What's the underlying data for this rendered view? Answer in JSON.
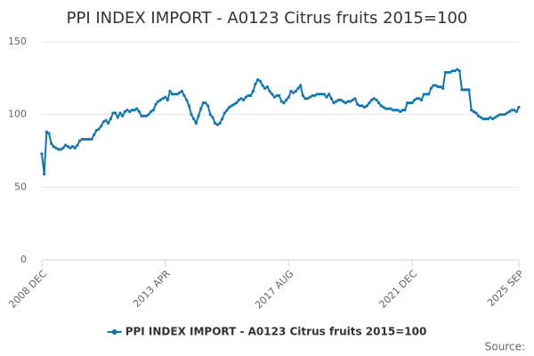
{
  "chart_data": {
    "type": "line",
    "title": "PPI INDEX IMPORT - A0123 Citrus fruits 2015=100",
    "credits": "Source:",
    "categories": [
      "2008 DEC",
      null,
      null,
      null,
      null,
      null,
      null,
      null,
      null,
      null,
      null,
      null,
      null,
      null,
      null,
      null,
      null,
      null,
      null,
      null,
      null,
      null,
      null,
      null,
      null,
      null,
      null,
      null,
      null,
      null,
      null,
      null,
      null,
      null,
      null,
      null,
      null,
      null,
      null,
      null,
      null,
      null,
      null,
      null,
      null,
      null,
      null,
      null,
      null,
      null,
      null,
      null,
      "2013 APR",
      null,
      null,
      null,
      null,
      null,
      null,
      null,
      null,
      null,
      null,
      null,
      null,
      null,
      null,
      null,
      null,
      null,
      null,
      null,
      null,
      null,
      null,
      null,
      null,
      null,
      null,
      null,
      null,
      null,
      null,
      null,
      null,
      null,
      null,
      null,
      null,
      null,
      null,
      null,
      null,
      null,
      null,
      null,
      null,
      null,
      null,
      null,
      null,
      null,
      null,
      null,
      "2017 AUG",
      null,
      null,
      null,
      null,
      null,
      null,
      null,
      null,
      null,
      null,
      null,
      null,
      null,
      null,
      null,
      null,
      null,
      null,
      null,
      null,
      null,
      null,
      null,
      null,
      null,
      null,
      null,
      null,
      null,
      null,
      null,
      null,
      null,
      null,
      null,
      null,
      null,
      null,
      null,
      null,
      null,
      null,
      null,
      null,
      null,
      null,
      null,
      null,
      null,
      null,
      null,
      "2021 DEC",
      null,
      null,
      null,
      null,
      null,
      null,
      null,
      null,
      null,
      null,
      null,
      null,
      null,
      null,
      null,
      null,
      null,
      null,
      null,
      null,
      null,
      null,
      null,
      null,
      null,
      null,
      null,
      null,
      null,
      null,
      null,
      null,
      null,
      null,
      null,
      null,
      null,
      null,
      null,
      null,
      null,
      null,
      null,
      null,
      "2025 SEP"
    ],
    "series": [
      {
        "name": "PPI INDEX IMPORT - A0123 Citrus fruits 2015=100",
        "color": "#0f76b5",
        "values": [
          73,
          59,
          88,
          87,
          80,
          78,
          77,
          76,
          76,
          77,
          79,
          78,
          77,
          78,
          77,
          79,
          82,
          83,
          83,
          83,
          83,
          83,
          86,
          89,
          90,
          92,
          95,
          96,
          94,
          97,
          101,
          101,
          98,
          101,
          99,
          102,
          103,
          102,
          103,
          103,
          104,
          102,
          99,
          99,
          99,
          100,
          102,
          103,
          107,
          109,
          110,
          111,
          112,
          110,
          116,
          114,
          114,
          114,
          115,
          116,
          113,
          110,
          106,
          100,
          97,
          94,
          99,
          104,
          108,
          108,
          106,
          100,
          98,
          94,
          93,
          94,
          97,
          101,
          103,
          105,
          106,
          107,
          108,
          110,
          111,
          110,
          112,
          113,
          113,
          116,
          121,
          124,
          123,
          120,
          118,
          119,
          116,
          114,
          112,
          113,
          113,
          109,
          108,
          110,
          112,
          116,
          115,
          116,
          118,
          120,
          113,
          111,
          111,
          112,
          113,
          113,
          114,
          114,
          114,
          114,
          112,
          114,
          111,
          108,
          109,
          110,
          110,
          109,
          108,
          109,
          109,
          110,
          111,
          107,
          106,
          106,
          105,
          106,
          108,
          110,
          111,
          110,
          108,
          106,
          105,
          104,
          104,
          104,
          103,
          103,
          103,
          102,
          103,
          103,
          108,
          108,
          108,
          110,
          111,
          111,
          110,
          114,
          114,
          114,
          118,
          120,
          120,
          119,
          119,
          118,
          129,
          129,
          129,
          130,
          130,
          131,
          130,
          117,
          117,
          117,
          117,
          103,
          102,
          101,
          99,
          98,
          97,
          97,
          97,
          98,
          97,
          98,
          99,
          100,
          100,
          100,
          101,
          102,
          103,
          103,
          102,
          105
        ]
      }
    ],
    "ylim": [
      0,
      150
    ],
    "yticks": [
      0,
      50,
      100,
      150
    ],
    "grid": true,
    "legend": "bottom"
  }
}
